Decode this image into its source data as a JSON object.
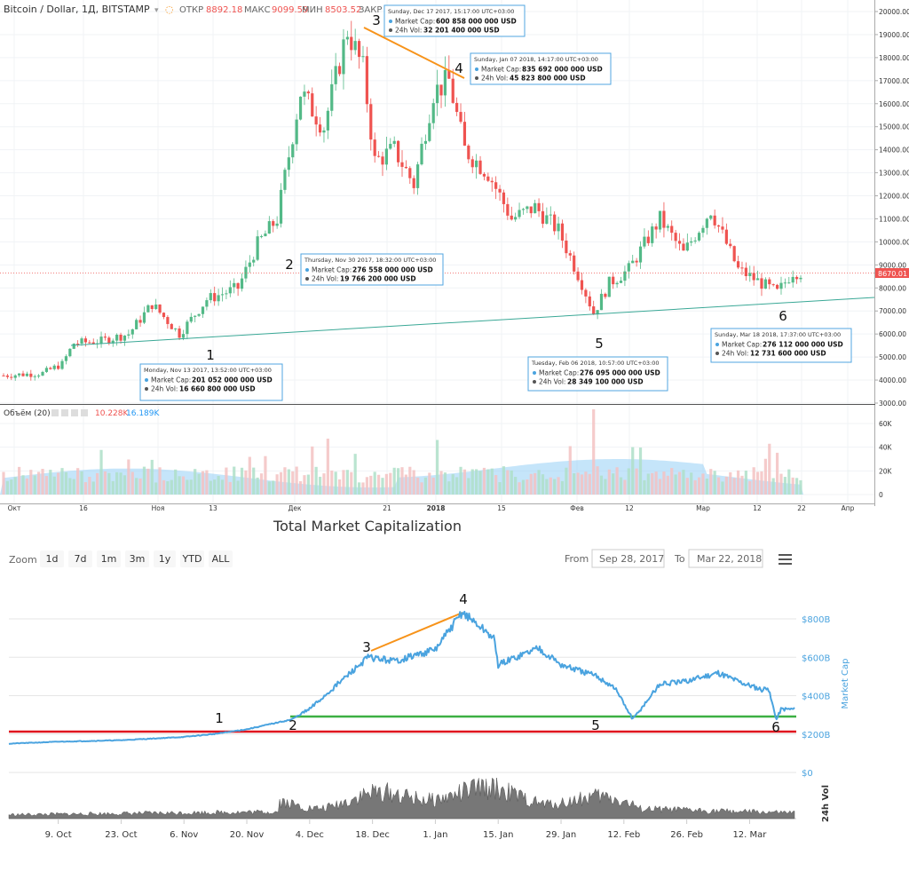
{
  "colors": {
    "up": "#26a69a",
    "up_body": "#53b987",
    "down": "#ef5350",
    "hl_blue": "#4aa3df",
    "orange": "#f7931a",
    "red": "#e0141e",
    "green": "#3cb043",
    "volume_grey": "#777777"
  },
  "top_chart": {
    "header": {
      "title": "Bitcoin / Dollar, 1Д, BITSTAMP",
      "o_label": "ОТКР",
      "o_val": "8892.18",
      "h_label": "МАКС",
      "h_val": "9099.59",
      "l_label": "МИН",
      "l_val": "8503.52",
      "c_label": "ЗАКР"
    },
    "price_axis": [
      "20000.00",
      "19000.00",
      "18000.00",
      "17000.00",
      "16000.00",
      "15000.00",
      "14000.00",
      "13000.00",
      "12000.00",
      "11000.00",
      "10000.00",
      "9000.00",
      "8000.00",
      "7000.00",
      "6000.00",
      "5000.00",
      "4000.00",
      "3000.00"
    ],
    "last_price": "8670.01",
    "volume_header": {
      "label": "Объём (20)",
      "v1": "10.228K",
      "v2": "16.189K"
    },
    "volume_axis": [
      "60K",
      "40K",
      "20K",
      "0"
    ],
    "x_axis": [
      "Окт",
      "16",
      "Ноя",
      "13",
      "Дек",
      "21",
      "2018",
      "15",
      "Фев",
      "12",
      "Мар",
      "12",
      "22",
      "Апр"
    ],
    "point_labels": [
      "1",
      "2",
      "3",
      "4",
      "5",
      "6"
    ],
    "tooltips": [
      {
        "date": "Monday, Nov 13 2017, 13:52:00 UTC+03:00",
        "cap_label": "Market Cap:",
        "cap": "201 052 000 000 USD",
        "vol_label": "24h Vol:",
        "vol": "16 660 800 000 USD"
      },
      {
        "date": "Thursday, Nov 30 2017, 18:32:00 UTC+03:00",
        "cap_label": "Market Cap:",
        "cap": "276 558 000 000 USD",
        "vol_label": "24h Vol:",
        "vol": "19 766 200 000 USD"
      },
      {
        "date": "Sunday, Dec 17 2017, 15:17:00 UTC+03:00",
        "cap_label": "Market Cap:",
        "cap": "600 858 000 000 USD",
        "vol_label": "24h Vol:",
        "vol": "32 201 400 000 USD"
      },
      {
        "date": "Sunday, Jan 07 2018, 14:17:00 UTC+03:00",
        "cap_label": "Market Cap:",
        "cap": "835 692 000 000 USD",
        "vol_label": "24h Vol:",
        "vol": "45 823 800 000 USD"
      },
      {
        "date": "Tuesday, Feb 06 2018, 10:57:00 UTC+03:00",
        "cap_label": "Market Cap:",
        "cap": "276 095 000 000 USD",
        "vol_label": "24h Vol:",
        "vol": "28 349 100 000 USD"
      },
      {
        "date": "Sunday, Mar 18 2018, 17:37:00 UTC+03:00",
        "cap_label": "Market Cap:",
        "cap": "276 112 000 000 USD",
        "vol_label": "24h Vol:",
        "vol": "12 731 600 000 USD"
      }
    ]
  },
  "bottom_chart": {
    "title": "Total Market Capitalization",
    "zoom_label": "Zoom",
    "zoom_buttons": [
      "1d",
      "7d",
      "1m",
      "3m",
      "1y",
      "YTD",
      "ALL"
    ],
    "from_label": "From",
    "from_value": "Sep 28, 2017",
    "to_label": "To",
    "to_value": "Mar 22, 2018",
    "cap_axis": [
      "$800B",
      "$600B",
      "$400B",
      "$200B",
      "$0"
    ],
    "cap_axis_title": "Market Cap",
    "vol_axis_title": "24h Vol",
    "x_axis": [
      "9. Oct",
      "23. Oct",
      "6. Nov",
      "20. Nov",
      "4. Dec",
      "18. Dec",
      "1. Jan",
      "15. Jan",
      "29. Jan",
      "12. Feb",
      "26. Feb",
      "12. Mar"
    ],
    "point_labels": [
      "1",
      "2",
      "3",
      "4",
      "5",
      "6"
    ]
  },
  "chart_data": [
    {
      "type": "line",
      "title": "Bitcoin / Dollar, 1Д, BITSTAMP",
      "x": [
        "Oct 1",
        "Oct 16",
        "Nov 1",
        "Nov 13",
        "Nov 30",
        "Dec 17",
        "Jan 7",
        "Feb 6",
        "Mar 18",
        "Mar 22"
      ],
      "series": [
        {
          "values": [
            4300,
            5600,
            6400,
            6000,
            9900,
            19200,
            17000,
            6900,
            7900,
            8670
          ]
        }
      ],
      "ylim": [
        3000,
        20000
      ]
    },
    {
      "type": "line",
      "title": "Total Market Capitalization",
      "x": [
        "Sep 28",
        "Oct 9",
        "Oct 23",
        "Nov 6",
        "Nov 13",
        "Nov 20",
        "Nov 30",
        "Dec 4",
        "Dec 17",
        "Jan 1",
        "Jan 7",
        "Jan 15",
        "Jan 29",
        "Feb 6",
        "Feb 12",
        "Feb 26",
        "Mar 12",
        "Mar 18",
        "Mar 22"
      ],
      "series": [
        {
          "values": [
            150,
            160,
            170,
            185,
            201,
            225,
            276,
            330,
            600,
            640,
            835,
            650,
            500,
            276,
            460,
            470,
            330,
            276,
            330
          ]
        }
      ],
      "ylim": [
        0,
        900
      ]
    }
  ]
}
